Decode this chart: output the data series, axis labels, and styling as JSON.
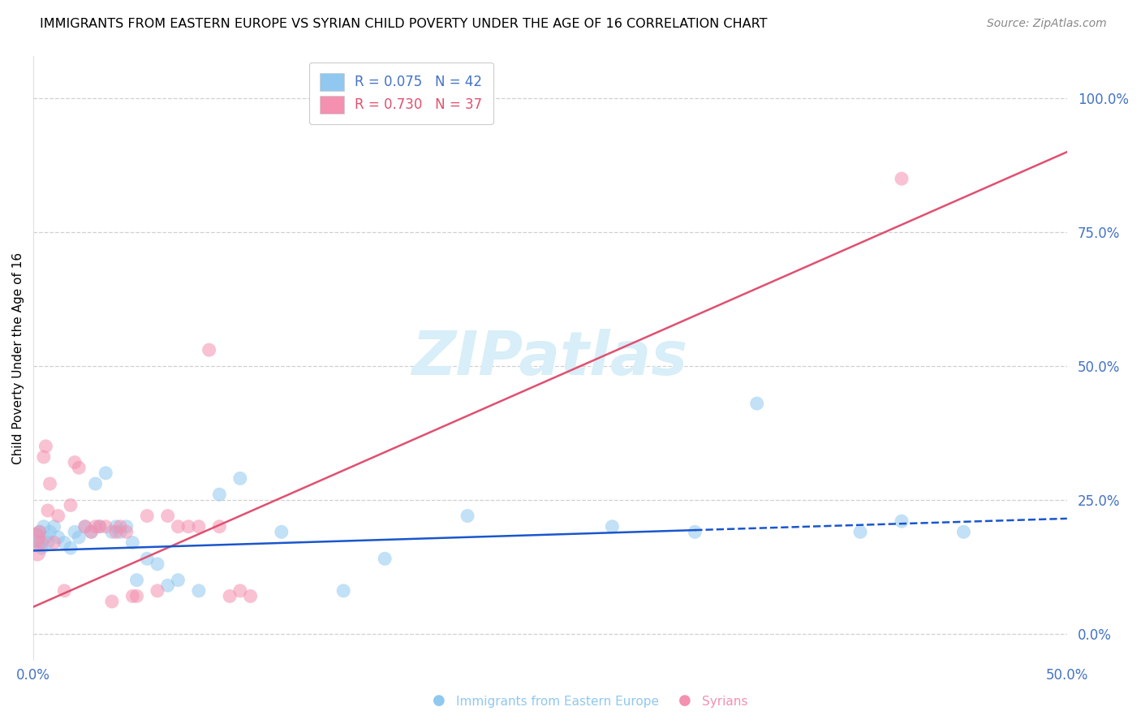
{
  "title": "IMMIGRANTS FROM EASTERN EUROPE VS SYRIAN CHILD POVERTY UNDER THE AGE OF 16 CORRELATION CHART",
  "source": "Source: ZipAtlas.com",
  "ylabel": "Child Poverty Under the Age of 16",
  "ytick_values": [
    0.0,
    0.25,
    0.5,
    0.75,
    1.0
  ],
  "ytick_labels": [
    "0.0%",
    "25.0%",
    "50.0%",
    "75.0%",
    "100.0%"
  ],
  "xlim": [
    0.0,
    0.5
  ],
  "ylim": [
    -0.05,
    1.08
  ],
  "xtick_positions": [
    0.0,
    0.5
  ],
  "xtick_labels": [
    "0.0%",
    "50.0%"
  ],
  "legend_entries": [
    {
      "label": "R = 0.075   N = 42",
      "color": "#90c8f0"
    },
    {
      "label": "R = 0.730   N = 37",
      "color": "#f490b0"
    }
  ],
  "watermark": "ZIPatlas",
  "watermark_color": "#d8eef8",
  "title_fontsize": 11.5,
  "source_fontsize": 10,
  "axis_color": "#4472c4",
  "blue_scatter_x": [
    0.001,
    0.002,
    0.003,
    0.004,
    0.005,
    0.006,
    0.007,
    0.008,
    0.01,
    0.012,
    0.015,
    0.018,
    0.02,
    0.022,
    0.025,
    0.028,
    0.03,
    0.032,
    0.035,
    0.038,
    0.04,
    0.042,
    0.045,
    0.048,
    0.05,
    0.055,
    0.06,
    0.065,
    0.07,
    0.08,
    0.09,
    0.1,
    0.12,
    0.15,
    0.17,
    0.21,
    0.28,
    0.32,
    0.35,
    0.4,
    0.42,
    0.45
  ],
  "blue_scatter_y": [
    0.18,
    0.17,
    0.19,
    0.16,
    0.2,
    0.18,
    0.17,
    0.19,
    0.2,
    0.18,
    0.17,
    0.16,
    0.19,
    0.18,
    0.2,
    0.19,
    0.28,
    0.2,
    0.3,
    0.19,
    0.2,
    0.19,
    0.2,
    0.17,
    0.1,
    0.14,
    0.13,
    0.09,
    0.1,
    0.08,
    0.26,
    0.29,
    0.19,
    0.08,
    0.14,
    0.22,
    0.2,
    0.19,
    0.43,
    0.19,
    0.21,
    0.19
  ],
  "blue_scatter_sizes": [
    60,
    40,
    30,
    30,
    30,
    30,
    30,
    30,
    30,
    30,
    30,
    30,
    30,
    30,
    30,
    30,
    30,
    30,
    30,
    30,
    30,
    30,
    30,
    30,
    30,
    30,
    30,
    30,
    30,
    30,
    30,
    30,
    30,
    30,
    30,
    30,
    30,
    30,
    30,
    30,
    30,
    30
  ],
  "pink_scatter_x": [
    0.001,
    0.002,
    0.003,
    0.004,
    0.005,
    0.006,
    0.007,
    0.008,
    0.01,
    0.012,
    0.015,
    0.018,
    0.02,
    0.022,
    0.025,
    0.028,
    0.03,
    0.032,
    0.035,
    0.038,
    0.04,
    0.042,
    0.045,
    0.048,
    0.05,
    0.055,
    0.06,
    0.065,
    0.07,
    0.075,
    0.08,
    0.085,
    0.09,
    0.095,
    0.1,
    0.105,
    0.42
  ],
  "pink_scatter_y": [
    0.18,
    0.15,
    0.19,
    0.17,
    0.33,
    0.35,
    0.23,
    0.28,
    0.17,
    0.22,
    0.08,
    0.24,
    0.32,
    0.31,
    0.2,
    0.19,
    0.2,
    0.2,
    0.2,
    0.06,
    0.19,
    0.2,
    0.19,
    0.07,
    0.07,
    0.22,
    0.08,
    0.22,
    0.2,
    0.2,
    0.2,
    0.53,
    0.2,
    0.07,
    0.08,
    0.07,
    0.85
  ],
  "pink_scatter_sizes": [
    60,
    40,
    30,
    30,
    30,
    30,
    30,
    30,
    30,
    30,
    30,
    30,
    30,
    30,
    30,
    30,
    30,
    30,
    30,
    30,
    30,
    30,
    30,
    30,
    30,
    30,
    30,
    30,
    30,
    30,
    30,
    30,
    30,
    30,
    30,
    30,
    30
  ],
  "blue_line_color": "#1a56cc",
  "pink_line_color": "#e05070",
  "grid_color": "#d0d0d0",
  "background_color": "#ffffff",
  "scatter_alpha": 0.55,
  "blue_line_solid_end": 0.32,
  "pink_intercept": 0.05,
  "pink_slope": 1.7,
  "blue_intercept": 0.155,
  "blue_slope": 0.12
}
